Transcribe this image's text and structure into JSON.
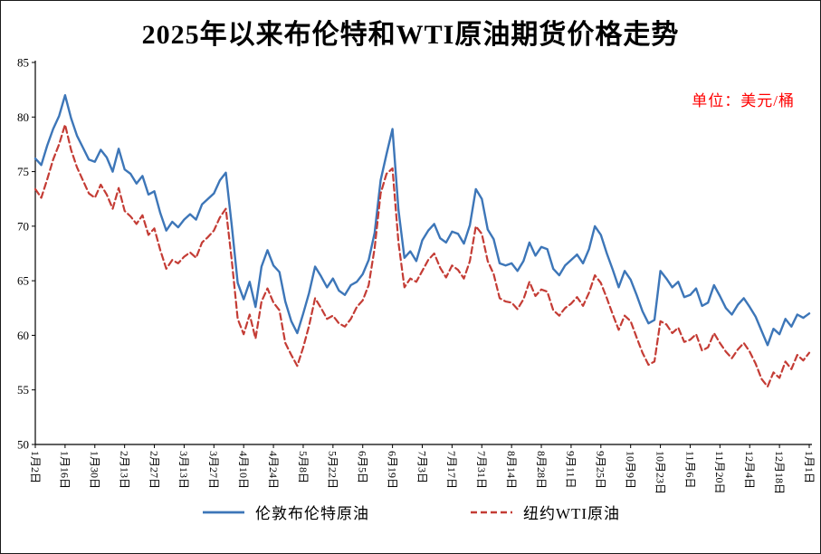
{
  "chart_data": {
    "type": "line",
    "title": "2025年以来布伦特和WTI原油期货价格走势",
    "unit_label": "单位：美元/桶",
    "ylim": [
      50,
      85
    ],
    "yticks": [
      50,
      55,
      60,
      65,
      70,
      75,
      80,
      85
    ],
    "grid": false,
    "legend_position": "bottom",
    "x_tick_labels": [
      "1月2日",
      "1月16日",
      "1月30日",
      "2月13日",
      "2月27日",
      "3月13日",
      "3月27日",
      "4月10日",
      "4月24日",
      "5月8日",
      "5月22日",
      "6月5日",
      "6月19日",
      "7月3日",
      "7月17日",
      "7月31日",
      "8月14日",
      "8月28日",
      "9月11日",
      "9月25日",
      "10月9日",
      "10月23日",
      "11月6日",
      "11月20日",
      "12月4日",
      "12月18日",
      "1月1日"
    ],
    "series": [
      {
        "name": "伦敦布伦特原油",
        "color": "#3d76b8",
        "style": "solid",
        "width": 2.4,
        "values": [
          76.2,
          75.6,
          77.4,
          78.9,
          80.1,
          82.0,
          79.9,
          78.3,
          77.2,
          76.1,
          75.9,
          77.0,
          76.3,
          75.0,
          77.1,
          75.2,
          74.8,
          73.9,
          74.6,
          72.9,
          73.2,
          71.2,
          69.6,
          70.4,
          69.9,
          70.6,
          71.1,
          70.6,
          72.0,
          72.5,
          73.0,
          74.2,
          74.9,
          70.1,
          64.8,
          63.3,
          64.9,
          62.6,
          66.3,
          67.8,
          66.4,
          65.8,
          63.1,
          61.3,
          60.2,
          62.0,
          63.9,
          66.3,
          65.4,
          64.4,
          65.2,
          64.1,
          63.7,
          64.6,
          64.9,
          65.6,
          66.9,
          69.4,
          74.2,
          76.6,
          78.9,
          71.5,
          67.1,
          67.7,
          66.8,
          68.7,
          69.6,
          70.2,
          68.9,
          68.5,
          69.5,
          69.3,
          68.4,
          70.1,
          73.4,
          72.5,
          69.7,
          68.8,
          66.6,
          66.4,
          66.6,
          65.9,
          66.8,
          68.5,
          67.3,
          68.1,
          67.9,
          66.1,
          65.5,
          66.4,
          66.9,
          67.4,
          66.6,
          67.9,
          70.0,
          69.2,
          67.5,
          66.0,
          64.4,
          65.9,
          65.1,
          63.7,
          62.2,
          61.1,
          61.4,
          65.9,
          65.2,
          64.4,
          64.9,
          63.5,
          63.7,
          64.3,
          62.7,
          63.0,
          64.6,
          63.6,
          62.5,
          61.9,
          62.8,
          63.4,
          62.6,
          61.7,
          60.4,
          59.1,
          60.6,
          60.1,
          61.5,
          60.8,
          61.9,
          61.6,
          62.0
        ]
      },
      {
        "name": "纽约WTI原油",
        "color": "#c43c35",
        "style": "dashed",
        "width": 2.2,
        "values": [
          73.4,
          72.6,
          74.3,
          76.1,
          77.5,
          79.3,
          77.0,
          75.4,
          74.2,
          73.0,
          72.6,
          73.8,
          72.9,
          71.6,
          73.5,
          71.4,
          70.9,
          70.2,
          71.0,
          69.2,
          69.8,
          67.8,
          66.1,
          66.9,
          66.6,
          67.2,
          67.6,
          67.1,
          68.5,
          69.0,
          69.6,
          70.8,
          71.6,
          66.9,
          61.5,
          60.1,
          61.9,
          59.7,
          63.1,
          64.3,
          63.0,
          62.3,
          59.3,
          58.2,
          57.2,
          58.9,
          60.9,
          63.4,
          62.5,
          61.5,
          61.8,
          61.1,
          60.8,
          61.5,
          62.6,
          63.2,
          64.6,
          68.0,
          73.0,
          74.8,
          75.3,
          68.5,
          64.4,
          65.2,
          64.9,
          65.9,
          66.9,
          67.5,
          66.2,
          65.3,
          66.4,
          66.0,
          65.2,
          66.8,
          70.0,
          69.3,
          66.8,
          65.6,
          63.4,
          63.1,
          63.0,
          62.4,
          63.3,
          64.9,
          63.6,
          64.2,
          64.0,
          62.3,
          61.8,
          62.5,
          62.9,
          63.5,
          62.7,
          63.9,
          65.5,
          64.8,
          63.4,
          61.9,
          60.5,
          61.8,
          61.3,
          59.8,
          58.4,
          57.3,
          57.6,
          61.3,
          61.0,
          60.2,
          60.7,
          59.4,
          59.6,
          60.1,
          58.6,
          58.9,
          60.2,
          59.3,
          58.5,
          57.9,
          58.7,
          59.3,
          58.5,
          57.4,
          56.0,
          55.3,
          56.6,
          56.1,
          57.6,
          56.9,
          58.2,
          57.7,
          58.4
        ]
      }
    ]
  }
}
